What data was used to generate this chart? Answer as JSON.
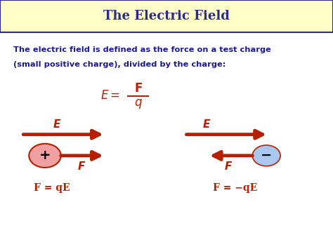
{
  "title": "The Electric Field",
  "title_bg": "#ffffc8",
  "title_border": "#2b2b8a",
  "title_color": "#2b2b8a",
  "body_bg": "#ffffff",
  "text_color": "#1a1a8c",
  "arrow_color": "#b52000",
  "main_text_line1": "The electric field is defined as the force on a test charge",
  "main_text_line2": "(small positive charge), divided by the charge:",
  "label_E": "E",
  "label_F": "F",
  "eq1": "F = qE",
  "eq2": "F = −qE",
  "plus_circle_color": "#f0a0a0",
  "minus_circle_color": "#a8c8f0",
  "plus_sign": "+",
  "minus_sign": "−",
  "plus_text_color": "#000000",
  "minus_text_color": "#000000",
  "fig_width": 4.74,
  "fig_height": 3.55,
  "dpi": 100
}
